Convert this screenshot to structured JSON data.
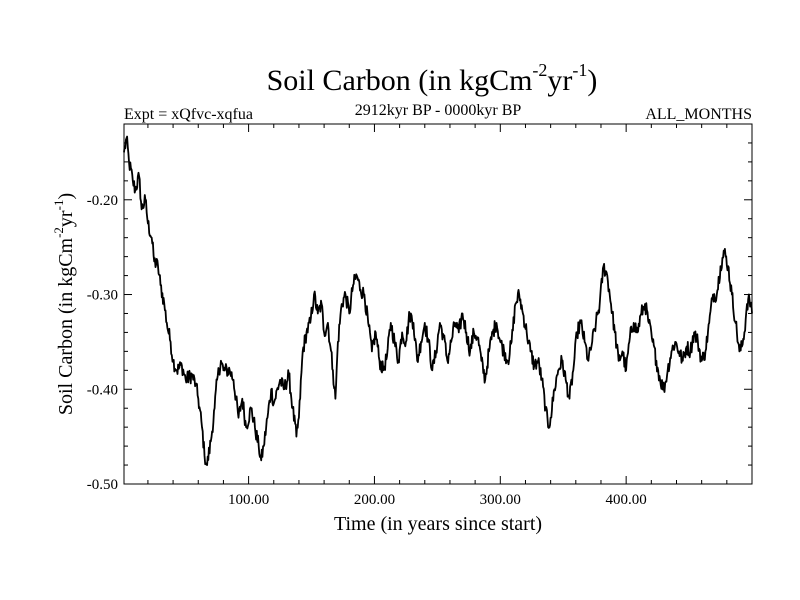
{
  "chart_data": {
    "type": "line",
    "title": {
      "base": "Soil Carbon (in kgCm",
      "sup1": "-2",
      "mid": "yr",
      "sup2": "-1",
      "end": ")"
    },
    "subtitle_left": "Expt = xQfvc-xqfua",
    "subtitle_center": "2912kyr BP - 0000kyr BP",
    "subtitle_right": "ALL_MONTHS",
    "xlabel": "Time (in years since start)",
    "ylabel": {
      "base": "Soil Carbon (in kgCm",
      "sup1": "-2",
      "mid": "yr",
      "sup2": "-1",
      "end": ")"
    },
    "xlim": [
      1,
      500
    ],
    "ylim": [
      -0.5,
      -0.12
    ],
    "x_ticks": [
      100,
      200,
      300,
      400
    ],
    "x_tick_labels": [
      "100.00",
      "200.00",
      "300.00",
      "400.00"
    ],
    "x_minor_step": 20,
    "y_ticks": [
      -0.5,
      -0.4,
      -0.3,
      -0.2
    ],
    "y_tick_labels": [
      "-0.50",
      "-0.40",
      "-0.30",
      "-0.20"
    ],
    "y_minor_step": 0.02,
    "series": [
      {
        "name": "Soil Carbon",
        "color": "#000000",
        "keypoints": [
          [
            1,
            -0.15
          ],
          [
            3,
            -0.135
          ],
          [
            5,
            -0.16
          ],
          [
            8,
            -0.18
          ],
          [
            10,
            -0.19
          ],
          [
            13,
            -0.175
          ],
          [
            15,
            -0.21
          ],
          [
            18,
            -0.2
          ],
          [
            20,
            -0.225
          ],
          [
            23,
            -0.24
          ],
          [
            25,
            -0.265
          ],
          [
            28,
            -0.27
          ],
          [
            30,
            -0.29
          ],
          [
            33,
            -0.31
          ],
          [
            35,
            -0.33
          ],
          [
            38,
            -0.35
          ],
          [
            40,
            -0.37
          ],
          [
            43,
            -0.38
          ],
          [
            47,
            -0.375
          ],
          [
            50,
            -0.39
          ],
          [
            55,
            -0.385
          ],
          [
            58,
            -0.395
          ],
          [
            60,
            -0.41
          ],
          [
            63,
            -0.44
          ],
          [
            65,
            -0.47
          ],
          [
            67,
            -0.48
          ],
          [
            70,
            -0.455
          ],
          [
            73,
            -0.42
          ],
          [
            75,
            -0.39
          ],
          [
            78,
            -0.37
          ],
          [
            80,
            -0.38
          ],
          [
            85,
            -0.38
          ],
          [
            88,
            -0.39
          ],
          [
            92,
            -0.43
          ],
          [
            95,
            -0.41
          ],
          [
            98,
            -0.44
          ],
          [
            102,
            -0.42
          ],
          [
            105,
            -0.44
          ],
          [
            108,
            -0.46
          ],
          [
            110,
            -0.475
          ],
          [
            112,
            -0.46
          ],
          [
            115,
            -0.43
          ],
          [
            118,
            -0.4
          ],
          [
            120,
            -0.415
          ],
          [
            125,
            -0.39
          ],
          [
            128,
            -0.4
          ],
          [
            132,
            -0.385
          ],
          [
            135,
            -0.42
          ],
          [
            138,
            -0.45
          ],
          [
            140,
            -0.43
          ],
          [
            143,
            -0.36
          ],
          [
            146,
            -0.34
          ],
          [
            149,
            -0.33
          ],
          [
            152,
            -0.3
          ],
          [
            155,
            -0.32
          ],
          [
            158,
            -0.31
          ],
          [
            160,
            -0.34
          ],
          [
            163,
            -0.33
          ],
          [
            165,
            -0.355
          ],
          [
            167,
            -0.38
          ],
          [
            169,
            -0.41
          ],
          [
            171,
            -0.35
          ],
          [
            174,
            -0.31
          ],
          [
            177,
            -0.3
          ],
          [
            180,
            -0.32
          ],
          [
            183,
            -0.29
          ],
          [
            186,
            -0.28
          ],
          [
            189,
            -0.295
          ],
          [
            192,
            -0.3
          ],
          [
            195,
            -0.33
          ],
          [
            198,
            -0.36
          ],
          [
            201,
            -0.34
          ],
          [
            204,
            -0.37
          ],
          [
            207,
            -0.38
          ],
          [
            210,
            -0.365
          ],
          [
            213,
            -0.33
          ],
          [
            216,
            -0.35
          ],
          [
            219,
            -0.37
          ],
          [
            222,
            -0.34
          ],
          [
            225,
            -0.35
          ],
          [
            228,
            -0.32
          ],
          [
            231,
            -0.33
          ],
          [
            234,
            -0.37
          ],
          [
            237,
            -0.35
          ],
          [
            240,
            -0.33
          ],
          [
            243,
            -0.35
          ],
          [
            246,
            -0.38
          ],
          [
            249,
            -0.36
          ],
          [
            252,
            -0.33
          ],
          [
            255,
            -0.345
          ],
          [
            258,
            -0.37
          ],
          [
            261,
            -0.35
          ],
          [
            264,
            -0.33
          ],
          [
            267,
            -0.34
          ],
          [
            270,
            -0.32
          ],
          [
            273,
            -0.34
          ],
          [
            276,
            -0.36
          ],
          [
            279,
            -0.34
          ],
          [
            282,
            -0.345
          ],
          [
            285,
            -0.37
          ],
          [
            288,
            -0.39
          ],
          [
            291,
            -0.36
          ],
          [
            294,
            -0.34
          ],
          [
            297,
            -0.33
          ],
          [
            300,
            -0.35
          ],
          [
            303,
            -0.36
          ],
          [
            306,
            -0.37
          ],
          [
            309,
            -0.35
          ],
          [
            312,
            -0.31
          ],
          [
            315,
            -0.3
          ],
          [
            318,
            -0.32
          ],
          [
            321,
            -0.34
          ],
          [
            324,
            -0.36
          ],
          [
            327,
            -0.375
          ],
          [
            330,
            -0.37
          ],
          [
            333,
            -0.39
          ],
          [
            336,
            -0.42
          ],
          [
            338,
            -0.44
          ],
          [
            340,
            -0.43
          ],
          [
            343,
            -0.4
          ],
          [
            346,
            -0.38
          ],
          [
            349,
            -0.37
          ],
          [
            352,
            -0.39
          ],
          [
            355,
            -0.41
          ],
          [
            358,
            -0.38
          ],
          [
            361,
            -0.34
          ],
          [
            364,
            -0.33
          ],
          [
            367,
            -0.35
          ],
          [
            370,
            -0.37
          ],
          [
            373,
            -0.35
          ],
          [
            376,
            -0.33
          ],
          [
            379,
            -0.31
          ],
          [
            382,
            -0.27
          ],
          [
            385,
            -0.28
          ],
          [
            388,
            -0.31
          ],
          [
            391,
            -0.34
          ],
          [
            394,
            -0.37
          ],
          [
            397,
            -0.36
          ],
          [
            400,
            -0.38
          ],
          [
            403,
            -0.345
          ],
          [
            406,
            -0.33
          ],
          [
            409,
            -0.34
          ],
          [
            412,
            -0.32
          ],
          [
            415,
            -0.31
          ],
          [
            418,
            -0.33
          ],
          [
            421,
            -0.35
          ],
          [
            424,
            -0.37
          ],
          [
            427,
            -0.39
          ],
          [
            430,
            -0.4
          ],
          [
            433,
            -0.38
          ],
          [
            436,
            -0.36
          ],
          [
            439,
            -0.35
          ],
          [
            442,
            -0.36
          ],
          [
            445,
            -0.37
          ],
          [
            448,
            -0.355
          ],
          [
            451,
            -0.36
          ],
          [
            454,
            -0.34
          ],
          [
            457,
            -0.35
          ],
          [
            460,
            -0.37
          ],
          [
            463,
            -0.36
          ],
          [
            466,
            -0.33
          ],
          [
            469,
            -0.3
          ],
          [
            472,
            -0.3
          ],
          [
            475,
            -0.27
          ],
          [
            478,
            -0.255
          ],
          [
            481,
            -0.27
          ],
          [
            484,
            -0.3
          ],
          [
            487,
            -0.33
          ],
          [
            490,
            -0.36
          ],
          [
            492,
            -0.355
          ],
          [
            494,
            -0.34
          ],
          [
            496,
            -0.31
          ],
          [
            498,
            -0.305
          ],
          [
            500,
            -0.32
          ]
        ]
      }
    ]
  }
}
